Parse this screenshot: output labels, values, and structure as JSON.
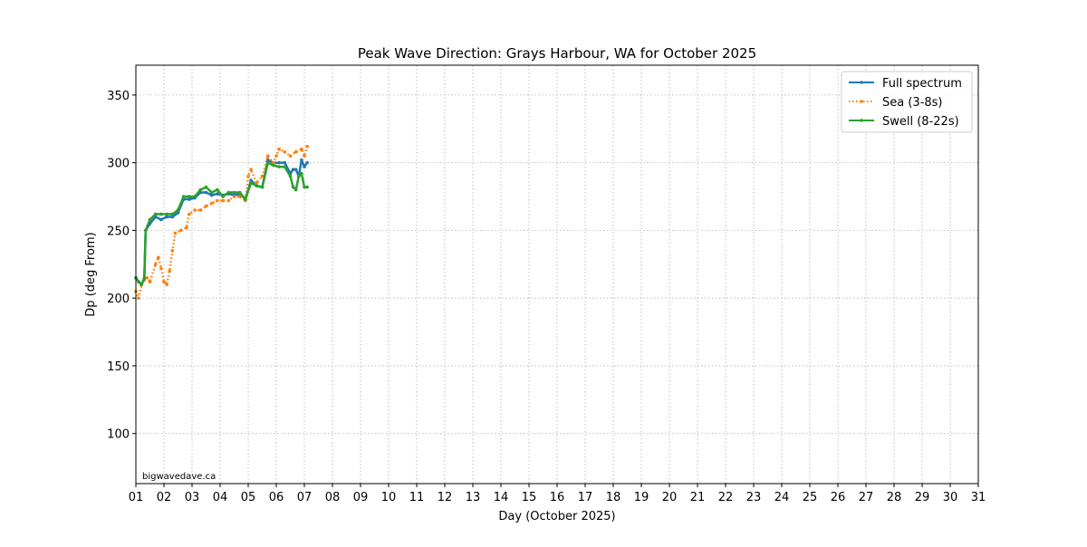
{
  "chart_data": {
    "type": "line",
    "title": "Peak Wave Direction: Grays Harbour, WA for October 2025",
    "xlabel": "Day (October 2025)",
    "ylabel": "Dp (deg From)",
    "xlim": [
      1,
      31
    ],
    "ylim": [
      63,
      372
    ],
    "x_ticks": [
      "01",
      "02",
      "03",
      "04",
      "05",
      "06",
      "07",
      "08",
      "09",
      "10",
      "11",
      "12",
      "13",
      "14",
      "15",
      "16",
      "17",
      "18",
      "19",
      "20",
      "21",
      "22",
      "23",
      "24",
      "25",
      "26",
      "27",
      "28",
      "29",
      "30",
      "31"
    ],
    "y_ticks": [
      100,
      150,
      200,
      250,
      300,
      350
    ],
    "grid": true,
    "legend_position": "top-right",
    "watermark": "bigwavedave.ca",
    "series": [
      {
        "name": "Full spectrum",
        "color": "#1f77b4",
        "style": "solid",
        "x": [
          1.0,
          1.1,
          1.2,
          1.3,
          1.35,
          1.5,
          1.7,
          1.9,
          2.1,
          2.3,
          2.5,
          2.7,
          2.9,
          3.1,
          3.3,
          3.5,
          3.7,
          3.9,
          4.1,
          4.3,
          4.5,
          4.7,
          4.9,
          5.1,
          5.3,
          5.5,
          5.7,
          5.9,
          6.1,
          6.3,
          6.5,
          6.6,
          6.7,
          6.8,
          6.9,
          7.0,
          7.1
        ],
        "y": [
          215,
          212,
          210,
          214,
          250,
          255,
          260,
          258,
          260,
          260,
          263,
          273,
          273,
          274,
          278,
          278,
          276,
          277,
          276,
          277,
          276,
          277,
          273,
          287,
          283,
          282,
          302,
          300,
          300,
          300,
          292,
          295,
          295,
          290,
          302,
          297,
          300
        ]
      },
      {
        "name": "Sea (3-8s)",
        "color": "#ff7f0e",
        "style": "dotted",
        "x": [
          1.0,
          1.1,
          1.2,
          1.4,
          1.5,
          1.7,
          1.8,
          1.9,
          2.0,
          2.1,
          2.2,
          2.3,
          2.4,
          2.6,
          2.8,
          2.9,
          3.1,
          3.3,
          3.5,
          3.7,
          3.9,
          4.1,
          4.3,
          4.5,
          4.7,
          4.9,
          5.0,
          5.1,
          5.3,
          5.5,
          5.7,
          5.9,
          6.0,
          6.1,
          6.3,
          6.5,
          6.7,
          6.9,
          7.0,
          7.1
        ],
        "y": [
          205,
          200,
          210,
          215,
          212,
          225,
          230,
          222,
          212,
          210,
          220,
          235,
          248,
          250,
          252,
          262,
          265,
          265,
          268,
          270,
          272,
          272,
          272,
          275,
          275,
          272,
          290,
          295,
          285,
          290,
          305,
          300,
          305,
          310,
          308,
          305,
          308,
          310,
          305,
          312
        ]
      },
      {
        "name": "Swell (8-22s)",
        "color": "#2ca02c",
        "style": "solid",
        "x": [
          1.0,
          1.1,
          1.2,
          1.3,
          1.35,
          1.5,
          1.7,
          1.9,
          2.1,
          2.3,
          2.5,
          2.7,
          2.9,
          3.1,
          3.3,
          3.5,
          3.7,
          3.9,
          4.1,
          4.3,
          4.5,
          4.7,
          4.9,
          5.1,
          5.3,
          5.5,
          5.7,
          5.9,
          6.1,
          6.3,
          6.5,
          6.6,
          6.7,
          6.8,
          6.9,
          7.0,
          7.1
        ],
        "y": [
          215,
          212,
          210,
          215,
          250,
          258,
          262,
          262,
          262,
          262,
          265,
          275,
          275,
          275,
          280,
          282,
          278,
          280,
          275,
          278,
          278,
          278,
          273,
          285,
          283,
          282,
          300,
          298,
          297,
          297,
          290,
          282,
          280,
          290,
          292,
          282,
          282
        ]
      }
    ]
  }
}
